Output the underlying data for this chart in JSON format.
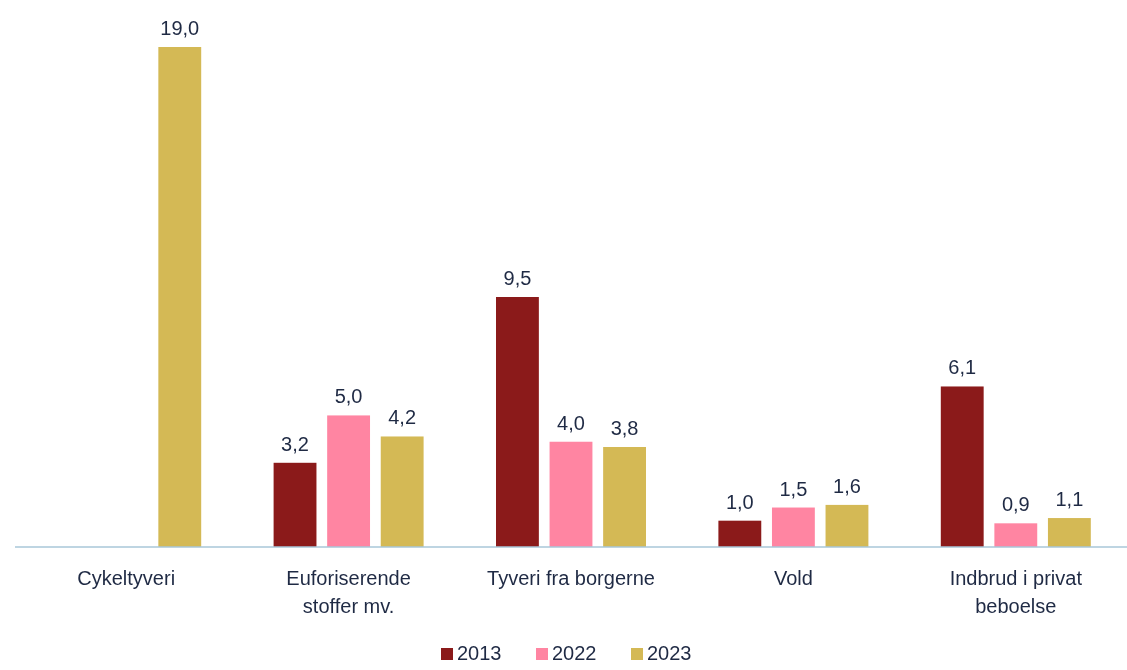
{
  "chart_data": {
    "type": "bar",
    "categories": [
      "Cykeltyveri",
      "Euforiserende stoffer mv.",
      "Tyveri fra borgerne",
      "Vold",
      "Indbrud i privat beboelse"
    ],
    "series": [
      {
        "name": "2013",
        "color": "#8b1a1a",
        "values": [
          null,
          3.2,
          9.5,
          1.0,
          6.1
        ],
        "value_labels": [
          null,
          "3,2",
          "9,5",
          "1,0",
          "6,1"
        ]
      },
      {
        "name": "2022",
        "color": "#ff85a2",
        "values": [
          null,
          5.0,
          4.0,
          1.5,
          0.9
        ],
        "value_labels": [
          null,
          "5,0",
          "4,0",
          "1,5",
          "0,9"
        ]
      },
      {
        "name": "2023",
        "color": "#d4b955",
        "values": [
          19.0,
          4.2,
          3.8,
          1.6,
          1.1
        ],
        "value_labels": [
          "19,0",
          "4,2",
          "3,8",
          "1,6",
          "1,1"
        ]
      }
    ],
    "tick_labels": "x",
    "grid": false,
    "legend": "bottom"
  }
}
